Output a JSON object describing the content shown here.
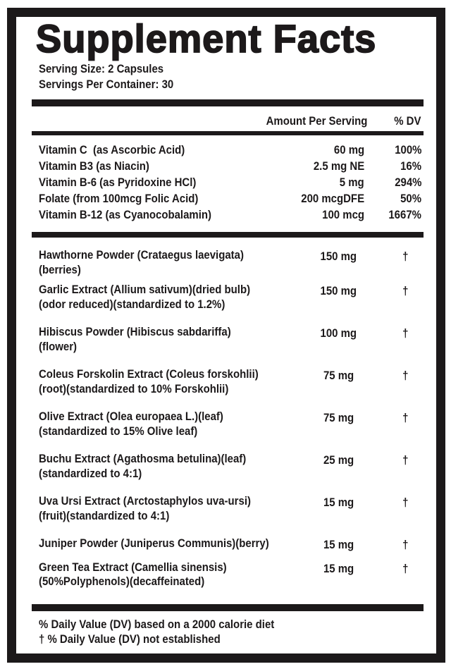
{
  "colors": {
    "ink": "#1c191a",
    "background": "#ffffff"
  },
  "label": {
    "title": "Supplement Facts",
    "serving_size": "Serving Size: 2 Capsules",
    "servings_per_container": "Servings Per Container: 30",
    "columns": {
      "amount": "Amount Per Serving",
      "dv": "% DV"
    },
    "vitamins": [
      {
        "name": "Vitamin C  (as Ascorbic Acid)",
        "amount": "60 mg",
        "dv": "100%"
      },
      {
        "name": "Vitamin B3 (as Niacin)",
        "amount": "2.5 mg NE",
        "dv": "16%"
      },
      {
        "name": "Vitamin B-6 (as Pyridoxine HCl)",
        "amount": "5 mg",
        "dv": "294%"
      },
      {
        "name": "Folate (from 100mcg Folic Acid)",
        "amount": "200 mcgDFE",
        "dv": "50%"
      },
      {
        "name": "Vitamin B-12 (as Cyanocobalamin)",
        "amount": "100 mcg",
        "dv": "1667%"
      }
    ],
    "botanicals": [
      {
        "name": "Hawthorne Powder (Crataegus laevigata)",
        "name2": "(berries)",
        "amount": "150 mg",
        "dv": "†"
      },
      {
        "name": "Garlic Extract (Allium sativum)(dried bulb)",
        "name2": "(odor reduced)(standardized to 1.2%)",
        "amount": "150 mg",
        "dv": "†"
      },
      {
        "name": "Hibiscus Powder (Hibiscus sabdariffa)",
        "name2": "(flower)",
        "amount": "100 mg",
        "dv": "†"
      },
      {
        "name": "Coleus Forskolin Extract (Coleus forskohlii)",
        "name2": "(root)(standardized to 10% Forskohlii)",
        "amount": "75 mg",
        "dv": "†"
      },
      {
        "name": "Olive Extract (Olea europaea L.)(leaf)",
        "name2": "(standardized to 15% Olive leaf)",
        "amount": "75 mg",
        "dv": "†"
      },
      {
        "name": "Buchu Extract (Agathosma betulina)(leaf)",
        "name2": "(standardized to 4:1)",
        "amount": "25 mg",
        "dv": "†"
      },
      {
        "name": "Uva Ursi Extract (Arctostaphylos uva-ursi)",
        "name2": "(fruit)(standardized to 4:1)",
        "amount": "15 mg",
        "dv": "†"
      },
      {
        "name": "Juniper Powder (Juniperus Communis)(berry)",
        "name2": "",
        "amount": "15 mg",
        "dv": "†"
      },
      {
        "name": "Green Tea Extract (Camellia sinensis)",
        "name2": "(50%Polyphenols)(decaffeinated)",
        "amount": "15 mg",
        "dv": "†"
      }
    ],
    "footnotes": [
      "% Daily Value (DV) based on a 2000 calorie diet",
      "† % Daily Value (DV) not established"
    ]
  }
}
